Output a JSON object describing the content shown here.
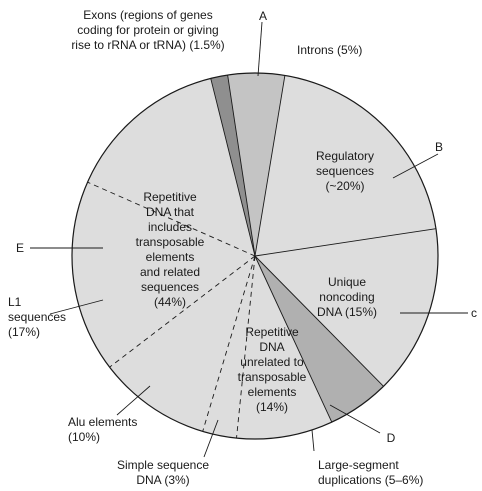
{
  "chart_data": {
    "type": "pie",
    "title": "",
    "colors": {
      "exons": "#8f8f8f",
      "introns": "#c4c4c4",
      "light": "#dddddd",
      "large_segment": "#b0b0b0",
      "stroke": "#1a1a1a"
    },
    "slices": [
      {
        "key": "exons",
        "name": "Exons (regions of genes coding for protein or giving rise to rRNA or tRNA)",
        "value": 1.5,
        "label_lines": [
          "Exons (regions of genes",
          "coding for protein or giving",
          "rise to rRNA or tRNA) (1.5%)"
        ],
        "letter": "A"
      },
      {
        "key": "introns",
        "name": "Introns",
        "value": 5,
        "label_lines": [
          "Introns (5%)"
        ]
      },
      {
        "key": "regulatory",
        "name": "Regulatory sequences",
        "value": 20,
        "label_lines": [
          "Regulatory",
          "sequences",
          "(~20%)"
        ],
        "letter": "B"
      },
      {
        "key": "unique_noncoding",
        "name": "Unique noncoding DNA",
        "value": 15,
        "label_lines": [
          "Unique",
          "noncoding",
          "DNA (15%)"
        ],
        "letter": "c"
      },
      {
        "key": "large_segment",
        "name": "Large-segment duplications",
        "value": 5.5,
        "label_lines": [
          "Large-segment",
          "duplications (5–6%)"
        ],
        "letter": "D"
      },
      {
        "key": "repetitive_unrelated",
        "name": "Repetitive DNA unrelated to transposable elements",
        "value": 8.5,
        "label_lines": [
          "Repetitive",
          "DNA",
          "unrelated to",
          "transposable",
          "elements",
          "(14%)"
        ]
      },
      {
        "key": "simple_sequence",
        "name": "Simple sequence DNA",
        "value": 3,
        "label_lines": [
          "Simple sequence",
          "DNA (3%)"
        ]
      },
      {
        "key": "alu",
        "name": "Alu elements",
        "value": 10,
        "label_lines": [
          "Alu elements",
          "(10%)"
        ]
      },
      {
        "key": "l1",
        "name": "L1 sequences",
        "value": 17,
        "label_lines": [
          "L1",
          "sequences",
          "(17%)"
        ]
      },
      {
        "key": "other_transposable",
        "name": "Other repetitive DNA related to transposable elements",
        "value": 14.5,
        "label_lines": []
      }
    ],
    "group_labels": [
      {
        "key": "repetitive_transposable",
        "name": "Repetitive DNA that includes transposable elements and related sequences",
        "value": 44,
        "label_lines": [
          "Repetitive",
          "DNA that",
          "includes",
          "transposable",
          "elements",
          "and related",
          "sequences",
          "(44%)"
        ],
        "letter": "E"
      }
    ]
  }
}
